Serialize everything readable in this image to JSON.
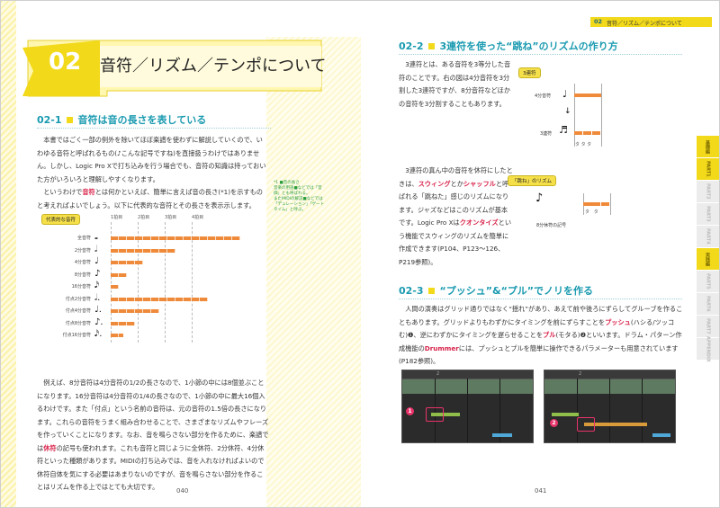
{
  "chapter": {
    "number": "02",
    "title": "音符／リズム／テンポについて"
  },
  "header_right": {
    "chapter_num": "02",
    "title": "音符／リズム／テンポについて"
  },
  "section_1": {
    "number": "02-1",
    "title": "音符は音の長さを表している",
    "para1": "本書ではごく一部の例外を除いてほぼ楽譜を使わずに解説していくので、いわゆる音符と呼ばれるもの(♪こんな記号ですね)を直接扱うわけではありません。しかし、Logic Pro Xで打ち込みを行う場合でも、音符の知識は持っておいた方がいろいろと理解しやすくなります。",
    "para2_a": "というわけで",
    "para2_red": "音符",
    "para2_b": "とは何かといえば、簡単に言えば音の長さ(*1)を示すものと考えればよいでしょう。以下に代表的な音符とその長さを表示示します。",
    "side_note": "*1 ■音の長さ\n音楽の用語■などでは「音価」とも呼ばれる。\nまたMIDIの解説■などでは「デュレーション」「ゲートタイム」と呼ぶ。"
  },
  "note_chart": {
    "label": "代表的な音符",
    "ticks": [
      "1拍目",
      "2拍目",
      "3拍目",
      "4拍目"
    ],
    "rows": [
      {
        "name": "全音符",
        "glyph": "𝅝",
        "beats": 4
      },
      {
        "name": "2分音符",
        "glyph": "𝅗𝅥",
        "beats": 2
      },
      {
        "name": "4分音符",
        "glyph": "♩",
        "beats": 1
      },
      {
        "name": "8分音符",
        "glyph": "♪",
        "beats": 0.5
      },
      {
        "name": "16分音符",
        "glyph": "𝅘𝅥𝅯",
        "beats": 0.25
      },
      {
        "name": "付点2分音符",
        "glyph": "𝅗𝅥.",
        "beats": 3
      },
      {
        "name": "付点4分音符",
        "glyph": "♩.",
        "beats": 1.5
      },
      {
        "name": "付点8分音符",
        "glyph": "♪.",
        "beats": 0.75
      },
      {
        "name": "付点16分音符",
        "glyph": "𝅘𝅥𝅯.",
        "beats": 0.375
      }
    ]
  },
  "left_bottom": {
    "para1": "例えば、8分音符は4分音符の1/2の長さなので、1小節の中には8個並ぶことになります。16分音符は4分音符の1/4の長さなので、1小節の中に最大16個入るわけです。また「付点」という名前の音符は、元の音符の1.5倍の長さになります。これらの音符をうまく組み合わせることで、さまざまなリズムやフレーズを作っていくことになります。なお、音を鳴らさない部分を作るために、楽譜では",
    "red1": "休符",
    "para1_b": "の記号も使われます。これも音符と同じように全休符、2分休符、4分休符といった種類があります。MIDIの打ち込みでは、音を入れなければよいので休符自体を気にする必要はあまりないのですが、音を鳴らさない部分を作ることはリズムを作る上ではとても大切です。"
  },
  "page_left": "040",
  "page_right": "041",
  "section_2": {
    "number": "02-2",
    "title": "3連符を使った“跳ね”のリズムの作り方",
    "para1": "3連符とは、ある音符を3等分した音符のことです。右の図は4分音符を3分割した3連符ですが、8分音符などほかの音符を3分割することもあります。",
    "para2_a": "3連符の真ん中の音符を休符にしたときは、",
    "para2_red1": "スウィング",
    "para2_b": "とか",
    "para2_red2": "シャッフル",
    "para2_c": "と呼ばれる「跳ねた」感じのリズムになります。ジャズなどはこのリズムが基本です。Logic Pro Xは",
    "para2_red3": "クオンタイズ",
    "para2_d": "という機能でスウィングのリズムを簡単に作成できます(P104、P123〜126、P219参照)。",
    "diag1_label": "3連符",
    "diag1_top": "4分音符",
    "diag1_bottom": "3連符",
    "diag1_sub": "タ タ タ",
    "diag2_label": "「跳ね」のリズム",
    "diag2_caption": "8分休符の記号",
    "diag2_sub": "タ   タ"
  },
  "section_3": {
    "number": "02-3",
    "title": "“プッシュ”&“プル”でノリを作る",
    "para_a": "人間の演奏はグリッド通りではなく“揺れ”があり、あえて前や後ろにずらしてグルーブを作ることもあります。グリッドよりもわずかにタイミングを前にずらすことを",
    "red1": "プッシュ",
    "para_b": "(ハシる/ツッコむ)❶、逆にわずかにタイミングを遅らせることを",
    "red2": "プル",
    "para_c": "(モタる)❷といいます。ドラム・パターン作成機能の",
    "red3": "Drummer",
    "para_d": "には、プッシュとプルを簡単に操作できるパラメーターも用意されています(P182参照)。",
    "daw1_ruler": "2",
    "daw2_ruler": "2",
    "badge1": "1",
    "badge2": "2"
  },
  "side_tabs": [
    "基礎編",
    "PART1",
    "PART2",
    "PART3",
    "PART4",
    "実践編",
    "PART5",
    "PART6",
    "PART7",
    "APPENDIX"
  ],
  "colors": {
    "accent_yellow": "#f2d91a",
    "accent_teal": "#1a9ab0",
    "bar_orange": "#ef8a3a",
    "red_text": "#d8224a"
  }
}
